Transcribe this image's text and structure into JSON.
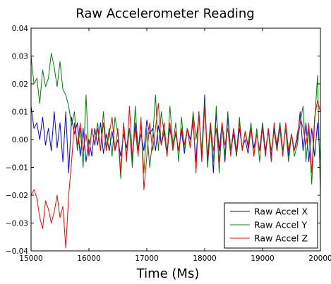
{
  "chart_data": {
    "type": "line",
    "title": "Raw Accelerometer Reading",
    "xlabel": "Time (Ms)",
    "ylabel": "",
    "xlim": [
      15000,
      20000
    ],
    "ylim": [
      -0.04,
      0.04
    ],
    "xticks": [
      15000,
      16000,
      17000,
      18000,
      19000,
      20000
    ],
    "xtick_labels": [
      "15000",
      "16000",
      "17000",
      "18000",
      "19000",
      "20000"
    ],
    "yticks": [
      0.04,
      0.03,
      0.02,
      0.01,
      0.0,
      -0.01,
      -0.02,
      -0.03,
      -0.04
    ],
    "ytick_labels": [
      "0.04",
      "0.03",
      "0.02",
      "0.01",
      "0.00",
      "−0.01",
      "−0.02",
      "−0.03",
      "−0.04"
    ],
    "grid": false,
    "legend_position": "lower-right",
    "series": [
      {
        "name": "Raw Accel X",
        "color": "#0000ff",
        "x": [
          15000,
          15050,
          15100,
          15150,
          15200,
          15250,
          15300,
          15350,
          15400,
          15450,
          15500,
          15550,
          15600,
          15650,
          15700,
          15750,
          15800,
          15850,
          15900,
          15950,
          16000,
          16050,
          16100,
          16150,
          16200,
          16250,
          16300,
          16350,
          16400,
          16450,
          16500,
          16550,
          16600,
          16650,
          16700,
          16750,
          16800,
          16850,
          16900,
          16950,
          17000,
          17050,
          17100,
          17150,
          17200,
          17250,
          17300,
          17350,
          17400,
          17450,
          17500,
          17550,
          17600,
          17650,
          17700,
          17750,
          17800,
          17850,
          17900,
          17950,
          18000,
          18050,
          18100,
          18150,
          18200,
          18250,
          18300,
          18350,
          18400,
          18450,
          18500,
          18550,
          18600,
          18650,
          18700,
          18750,
          18800,
          18850,
          18900,
          18950,
          19000,
          19050,
          19100,
          19150,
          19200,
          19250,
          19300,
          19350,
          19400,
          19450,
          19500,
          19550,
          19600,
          19650,
          19700,
          19750,
          19800,
          19850,
          19900,
          19950,
          20000
        ],
        "y": [
          0.012,
          0.004,
          0.006,
          0.0,
          0.008,
          -0.002,
          0.004,
          -0.004,
          0.01,
          -0.003,
          0.006,
          -0.008,
          0.01,
          -0.012,
          0.008,
          0.002,
          0.006,
          -0.006,
          0.004,
          -0.008,
          0.0,
          -0.006,
          0.004,
          -0.002,
          0.006,
          -0.005,
          0.002,
          -0.004,
          0.003,
          -0.004,
          0.0,
          -0.006,
          0.002,
          -0.003,
          0.004,
          -0.008,
          0.006,
          -0.004,
          0.002,
          -0.004,
          0.007,
          0.002,
          0.004,
          -0.004,
          0.005,
          -0.002,
          0.003,
          -0.004,
          0.004,
          -0.003,
          0.002,
          -0.004,
          0.003,
          -0.005,
          0.004,
          0.0,
          0.006,
          -0.008,
          0.01,
          -0.006,
          0.016,
          -0.008,
          0.006,
          -0.012,
          0.01,
          -0.004,
          0.006,
          -0.008,
          0.008,
          -0.004,
          0.002,
          -0.006,
          0.004,
          -0.003,
          0.0,
          -0.005,
          0.004,
          -0.003,
          0.002,
          -0.004,
          0.006,
          -0.004,
          0.003,
          -0.006,
          0.004,
          -0.002,
          0.006,
          -0.004,
          0.004,
          -0.006,
          0.002,
          -0.004,
          0.0,
          0.01,
          -0.004,
          0.006,
          -0.008,
          0.004,
          -0.006,
          0.006,
          -0.008
        ]
      },
      {
        "name": "Raw Accel Y",
        "color": "#008000",
        "x": [
          15000,
          15050,
          15100,
          15150,
          15200,
          15250,
          15300,
          15350,
          15400,
          15450,
          15500,
          15550,
          15600,
          15650,
          15700,
          15750,
          15800,
          15850,
          15900,
          15950,
          16000,
          16050,
          16100,
          16150,
          16200,
          16250,
          16300,
          16350,
          16400,
          16450,
          16500,
          16550,
          16600,
          16650,
          16700,
          16750,
          16800,
          16850,
          16900,
          16950,
          17000,
          17050,
          17100,
          17150,
          17200,
          17250,
          17300,
          17350,
          17400,
          17450,
          17500,
          17550,
          17600,
          17650,
          17700,
          17750,
          17800,
          17850,
          17900,
          17950,
          18000,
          18050,
          18100,
          18150,
          18200,
          18250,
          18300,
          18350,
          18400,
          18450,
          18500,
          18550,
          18600,
          18650,
          18700,
          18750,
          18800,
          18850,
          18900,
          18950,
          19000,
          19050,
          19100,
          19150,
          19200,
          19250,
          19300,
          19350,
          19400,
          19450,
          19500,
          19550,
          19600,
          19650,
          19700,
          19750,
          19800,
          19850,
          19900,
          19950,
          20000
        ],
        "y": [
          0.03,
          0.02,
          0.022,
          0.013,
          0.025,
          0.019,
          0.022,
          0.031,
          0.026,
          0.019,
          0.028,
          0.018,
          0.016,
          0.012,
          0.005,
          0.01,
          -0.004,
          0.004,
          -0.01,
          0.016,
          -0.006,
          0.004,
          -0.002,
          0.006,
          -0.004,
          0.01,
          -0.003,
          0.004,
          -0.006,
          0.008,
          0.002,
          -0.014,
          0.006,
          -0.006,
          0.004,
          -0.01,
          0.012,
          -0.004,
          0.006,
          -0.012,
          0.004,
          -0.01,
          0.0,
          0.016,
          -0.004,
          0.01,
          0.002,
          -0.006,
          0.012,
          -0.002,
          0.006,
          -0.008,
          0.008,
          -0.004,
          0.004,
          -0.003,
          0.01,
          0.0,
          0.008,
          -0.004,
          0.014,
          -0.01,
          0.004,
          -0.008,
          0.012,
          -0.012,
          0.006,
          -0.006,
          0.01,
          -0.004,
          0.004,
          -0.006,
          0.008,
          -0.004,
          0.003,
          -0.002,
          0.006,
          -0.006,
          0.004,
          -0.008,
          0.006,
          -0.006,
          0.004,
          -0.004,
          0.003,
          -0.004,
          0.006,
          -0.004,
          0.004,
          -0.008,
          0.002,
          -0.006,
          -0.002,
          0.006,
          0.012,
          -0.008,
          0.004,
          -0.016,
          0.006,
          0.023,
          -0.02
        ]
      },
      {
        "name": "Raw Accel Z",
        "color": "#ff0000",
        "x": [
          15000,
          15050,
          15100,
          15150,
          15200,
          15250,
          15300,
          15350,
          15400,
          15450,
          15500,
          15550,
          15600,
          15650,
          15700,
          15750,
          15800,
          15850,
          15900,
          15950,
          16000,
          16050,
          16100,
          16150,
          16200,
          16250,
          16300,
          16350,
          16400,
          16450,
          16500,
          16550,
          16600,
          16650,
          16700,
          16750,
          16800,
          16850,
          16900,
          16950,
          17000,
          17050,
          17100,
          17150,
          17200,
          17250,
          17300,
          17350,
          17400,
          17450,
          17500,
          17550,
          17600,
          17650,
          17700,
          17750,
          17800,
          17850,
          17900,
          17950,
          18000,
          18050,
          18100,
          18150,
          18200,
          18250,
          18300,
          18350,
          18400,
          18450,
          18500,
          18550,
          18600,
          18650,
          18700,
          18750,
          18800,
          18850,
          18900,
          18950,
          19000,
          19050,
          19100,
          19150,
          19200,
          19250,
          19300,
          19350,
          19400,
          19450,
          19500,
          19550,
          19600,
          19650,
          19700,
          19750,
          19800,
          19850,
          19900,
          19950,
          20000
        ],
        "y": [
          -0.02,
          -0.018,
          -0.021,
          -0.028,
          -0.032,
          -0.022,
          -0.025,
          -0.03,
          -0.026,
          -0.02,
          -0.028,
          -0.024,
          -0.039,
          -0.02,
          -0.008,
          0.006,
          -0.002,
          0.006,
          -0.004,
          0.002,
          -0.006,
          0.004,
          -0.002,
          0.004,
          -0.004,
          0.006,
          -0.004,
          0.002,
          0.008,
          -0.004,
          0.004,
          -0.012,
          0.006,
          -0.008,
          0.012,
          -0.006,
          0.004,
          -0.006,
          0.008,
          -0.018,
          -0.006,
          0.006,
          -0.004,
          0.004,
          0.013,
          -0.002,
          0.006,
          -0.006,
          0.006,
          -0.004,
          0.003,
          -0.004,
          0.004,
          -0.002,
          0.004,
          -0.003,
          0.008,
          -0.012,
          0.01,
          -0.008,
          0.012,
          -0.006,
          0.006,
          -0.004,
          0.004,
          -0.008,
          0.006,
          -0.002,
          0.004,
          -0.006,
          0.004,
          -0.004,
          0.006,
          -0.004,
          0.003,
          -0.003,
          0.004,
          -0.006,
          0.002,
          -0.004,
          0.004,
          -0.006,
          0.004,
          -0.008,
          0.006,
          -0.004,
          0.004,
          -0.006,
          0.006,
          -0.004,
          0.002,
          -0.004,
          0.002,
          0.008,
          0.004,
          -0.002,
          0.006,
          -0.012,
          0.008,
          0.014,
          0.01
        ]
      }
    ]
  }
}
